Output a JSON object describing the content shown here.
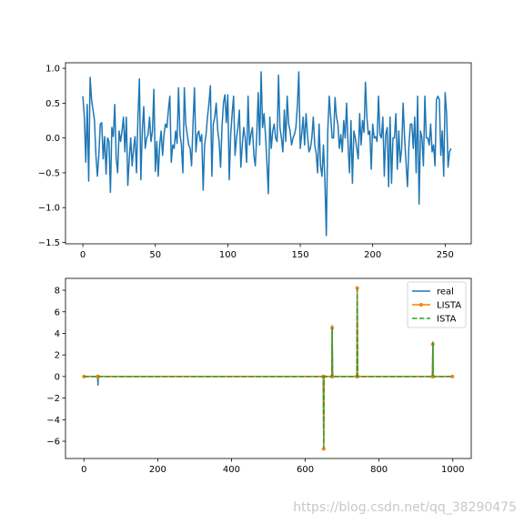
{
  "watermark": "https://blog.csdn.net/qq_38290475",
  "colors": {
    "blue": "#1f77b4",
    "orange": "#ff7f0e",
    "green": "#2ca02c"
  },
  "chart_data": [
    {
      "type": "line",
      "title": "",
      "xlabel": "",
      "ylabel": "",
      "xlim": [
        -12,
        268
      ],
      "ylim": [
        -1.52,
        1.08
      ],
      "xticks": [
        0,
        50,
        100,
        150,
        200,
        250
      ],
      "yticks": [
        -1.5,
        -1.0,
        -0.5,
        0.0,
        0.5,
        1.0
      ],
      "xtick_labels": [
        "0",
        "50",
        "100",
        "150",
        "200",
        "250"
      ],
      "ytick_labels": [
        "−1.5",
        "−1.0",
        "−0.5",
        "0.0",
        "0.5",
        "1.0"
      ],
      "grid": false,
      "series": [
        {
          "color": "#1f77b4",
          "values": [
            0.6,
            0.3,
            -0.35,
            0.48,
            -0.62,
            0.87,
            0.55,
            0.4,
            0.25,
            -0.25,
            -0.55,
            -0.25,
            0.2,
            0.22,
            -0.3,
            0.02,
            -0.52,
            0.0,
            -0.05,
            -0.78,
            0.15,
            0.02,
            0.48,
            -0.3,
            -0.5,
            0.1,
            -0.05,
            0.1,
            0.3,
            -0.2,
            0.3,
            -0.68,
            -0.3,
            0.0,
            -0.4,
            -0.15,
            0.02,
            -0.5,
            0.3,
            0.85,
            -0.6,
            0.1,
            0.45,
            -0.15,
            0.0,
            0.05,
            0.3,
            -0.05,
            0.1,
            0.7,
            -0.48,
            -0.05,
            -0.55,
            -0.1,
            0.1,
            -0.25,
            0.05,
            0.2,
            0.15,
            0.4,
            0.6,
            -0.35,
            -0.1,
            -0.15,
            0.1,
            -0.08,
            0.72,
            0.05,
            -0.1,
            -0.5,
            0.72,
            0.2,
            0.05,
            -0.1,
            -0.15,
            -0.4,
            0.2,
            0.72,
            -0.2,
            0.05,
            0.1,
            -0.05,
            0.05,
            -0.75,
            -0.1,
            0.05,
            0.3,
            0.5,
            0.75,
            -0.55,
            0.2,
            0.3,
            0.5,
            0.12,
            -0.05,
            -0.42,
            0.15,
            0.5,
            0.62,
            0.22,
            0.62,
            -0.6,
            0.05,
            0.35,
            0.6,
            -0.25,
            0.0,
            0.15,
            0.4,
            -0.42,
            -0.1,
            0.15,
            0.0,
            -0.35,
            0.6,
            -0.1,
            0.05,
            0.15,
            -0.25,
            -0.4,
            0.05,
            0.65,
            -0.1,
            0.95,
            0.15,
            0.35,
            0.05,
            -0.35,
            -0.8,
            0.3,
            -0.15,
            0.1,
            0.2,
            0.0,
            -0.05,
            0.9,
            0.15,
            0.0,
            -0.2,
            0.4,
            -0.05,
            0.6,
            0.2,
            0.1,
            -0.1,
            0.0,
            0.05,
            0.15,
            0.45,
            0.95,
            -0.15,
            0.05,
            0.3,
            -0.1,
            0.35,
            0.05,
            -0.2,
            -0.15,
            0.0,
            0.3,
            -0.1,
            -0.22,
            -0.5,
            0.2,
            -0.4,
            -0.55,
            -0.1,
            -0.6,
            -1.4,
            0.1,
            0.6,
            0.3,
            0.0,
            0.0,
            0.58,
            0.3,
            0.2,
            -0.15,
            0.05,
            -0.2,
            0.25,
            0.0,
            0.5,
            -0.1,
            -0.5,
            0.25,
            -0.65,
            0.1,
            0.0,
            -0.15,
            -0.3,
            0.35,
            -0.1,
            0.25,
            0.08,
            0.8,
            0.3,
            0.05,
            0.1,
            -0.45,
            0.2,
            0.0,
            0.02,
            -0.05,
            0.6,
            0.05,
            0.0,
            0.3,
            -0.55,
            0.05,
            0.15,
            -0.7,
            0.3,
            -0.65,
            0.0,
            0.0,
            0.35,
            -0.45,
            0.1,
            -0.35,
            -0.15,
            0.5,
            0.0,
            -0.35,
            -0.7,
            -0.1,
            0.2,
            0.2,
            -0.15,
            0.3,
            -0.5,
            0.6,
            -0.95,
            0.1,
            0.0,
            -0.4,
            0.6,
            0.0,
            0.0,
            -0.1,
            0.2,
            -0.2,
            -0.1,
            -0.4,
            0.55,
            0.6,
            0.55,
            -0.25,
            0.1,
            -0.55,
            0.65,
            0.35,
            -0.42,
            -0.2,
            -0.15
          ]
        }
      ]
    },
    {
      "type": "line",
      "title": "",
      "xlabel": "",
      "ylabel": "",
      "xlim": [
        -50,
        1050
      ],
      "ylim": [
        -7.6,
        9.1
      ],
      "xticks": [
        0,
        200,
        400,
        600,
        800,
        1000
      ],
      "yticks": [
        -6,
        -4,
        -2,
        0,
        2,
        4,
        6,
        8
      ],
      "xtick_labels": [
        "0",
        "200",
        "400",
        "600",
        "800",
        "1000"
      ],
      "ytick_labels": [
        "−6",
        "−4",
        "−2",
        "0",
        "2",
        "4",
        "6",
        "8"
      ],
      "grid": false,
      "legend": {
        "position": "top-right",
        "entries": [
          "real",
          "LISTA",
          "ISTA"
        ]
      },
      "series": [
        {
          "name": "real",
          "color": "#1f77b4",
          "style": "solid",
          "marker": "none",
          "x": [
            0,
            37,
            38,
            39,
            649,
            650,
            651,
            672,
            673,
            674,
            740,
            741,
            742,
            945,
            946,
            947,
            999
          ],
          "y": [
            0,
            0,
            -0.8,
            0,
            0,
            -6.4,
            0,
            0,
            4.7,
            0,
            0,
            8.3,
            0,
            0,
            3.2,
            0,
            0
          ]
        },
        {
          "name": "LISTA",
          "color": "#ff7f0e",
          "style": "solid",
          "marker": "dot",
          "x": [
            0,
            37,
            38,
            39,
            649,
            650,
            651,
            672,
            673,
            674,
            740,
            741,
            742,
            945,
            946,
            947,
            999
          ],
          "y": [
            0,
            0,
            -0.05,
            0,
            0,
            -6.7,
            0,
            0,
            4.5,
            0,
            0,
            8.2,
            0,
            0,
            3.0,
            0,
            0
          ]
        },
        {
          "name": "ISTA",
          "color": "#2ca02c",
          "style": "dashed",
          "marker": "none",
          "x": [
            0,
            37,
            38,
            39,
            649,
            650,
            651,
            672,
            673,
            674,
            740,
            741,
            742,
            945,
            946,
            947,
            999
          ],
          "y": [
            0,
            0,
            -0.05,
            0,
            0,
            -6.6,
            0,
            0,
            4.5,
            0,
            0,
            8.1,
            0,
            0,
            3.1,
            0,
            0
          ]
        }
      ]
    }
  ]
}
